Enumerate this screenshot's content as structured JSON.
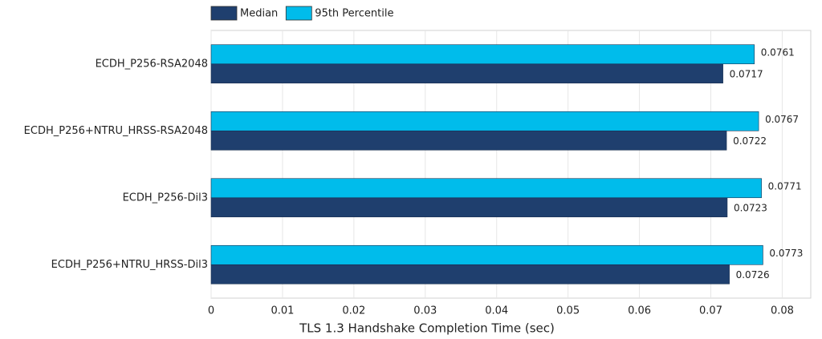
{
  "chart_data": {
    "type": "barh",
    "xlabel": "TLS 1.3 Handshake Completion Time (sec)",
    "categories": [
      "ECDH_P256-RSA2048",
      "ECDH_P256+NTRU_HRSS-RSA2048",
      "ECDH_P256-Dil3",
      "ECDH_P256+NTRU_HRSS-Dil3"
    ],
    "series": [
      {
        "name": "Median",
        "color": "#1f3f6e",
        "values": [
          0.0717,
          0.0722,
          0.0723,
          0.0726
        ]
      },
      {
        "name": "95th Percentile",
        "color": "#00bceb",
        "values": [
          0.0761,
          0.0767,
          0.0771,
          0.0773
        ]
      }
    ],
    "xlim": [
      0,
      0.084
    ],
    "xticks": [
      0,
      0.01,
      0.02,
      0.03,
      0.04,
      0.05,
      0.06,
      0.07,
      0.08
    ],
    "grid": true
  }
}
